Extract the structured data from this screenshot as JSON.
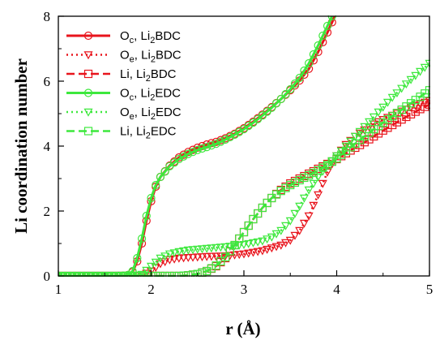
{
  "chart_data": {
    "type": "line",
    "title": "",
    "xlabel": "r (Å)",
    "ylabel": "Li coordination number",
    "xlim": [
      1,
      5
    ],
    "ylim": [
      0,
      8
    ],
    "x_ticks": [
      "1",
      "2",
      "3",
      "4",
      "5"
    ],
    "y_ticks": [
      "0",
      "2",
      "4",
      "6",
      "8"
    ],
    "grid": false,
    "legend_position": "top-left",
    "colors": {
      "red": "#e8141c",
      "green": "#3de83d"
    },
    "series": [
      {
        "name": "Oc, Li2BDC",
        "legend": {
          "a": "O",
          "a_sub": "c",
          "b": ",  Li",
          "b_sub": "2",
          "c": "BDC"
        },
        "color": "#e8141c",
        "line": "solid",
        "marker": "circle",
        "points": [
          [
            1.0,
            0
          ],
          [
            1.2,
            0
          ],
          [
            1.4,
            0
          ],
          [
            1.6,
            0
          ],
          [
            1.7,
            0.01
          ],
          [
            1.75,
            0.03
          ],
          [
            1.8,
            0.12
          ],
          [
            1.85,
            0.45
          ],
          [
            1.9,
            1.0
          ],
          [
            1.95,
            1.7
          ],
          [
            2.0,
            2.3
          ],
          [
            2.05,
            2.75
          ],
          [
            2.1,
            3.05
          ],
          [
            2.2,
            3.4
          ],
          [
            2.3,
            3.65
          ],
          [
            2.4,
            3.82
          ],
          [
            2.5,
            3.95
          ],
          [
            2.6,
            4.05
          ],
          [
            2.7,
            4.13
          ],
          [
            2.8,
            4.24
          ],
          [
            2.9,
            4.38
          ],
          [
            3.0,
            4.55
          ],
          [
            3.1,
            4.75
          ],
          [
            3.2,
            4.97
          ],
          [
            3.3,
            5.2
          ],
          [
            3.4,
            5.45
          ],
          [
            3.5,
            5.72
          ],
          [
            3.6,
            6.02
          ],
          [
            3.7,
            6.38
          ],
          [
            3.8,
            6.9
          ],
          [
            3.9,
            7.5
          ],
          [
            3.98,
            8.0
          ]
        ]
      },
      {
        "name": "Oe, Li2BDC",
        "legend": {
          "a": "O",
          "a_sub": "e",
          "b": ",  Li",
          "b_sub": "2",
          "c": "BDC"
        },
        "color": "#e8141c",
        "line": "dotted",
        "marker": "triangle-down",
        "points": [
          [
            1.0,
            0
          ],
          [
            1.4,
            0
          ],
          [
            1.8,
            0
          ],
          [
            1.9,
            0.02
          ],
          [
            2.0,
            0.15
          ],
          [
            2.1,
            0.38
          ],
          [
            2.2,
            0.5
          ],
          [
            2.3,
            0.55
          ],
          [
            2.4,
            0.57
          ],
          [
            2.6,
            0.6
          ],
          [
            2.8,
            0.62
          ],
          [
            3.0,
            0.68
          ],
          [
            3.2,
            0.78
          ],
          [
            3.4,
            0.95
          ],
          [
            3.5,
            1.1
          ],
          [
            3.6,
            1.4
          ],
          [
            3.7,
            1.85
          ],
          [
            3.8,
            2.5
          ],
          [
            3.9,
            3.2
          ],
          [
            4.0,
            3.7
          ],
          [
            4.1,
            4.05
          ],
          [
            4.2,
            4.3
          ],
          [
            4.3,
            4.5
          ],
          [
            4.4,
            4.68
          ],
          [
            4.5,
            4.82
          ],
          [
            4.6,
            4.95
          ],
          [
            4.7,
            5.08
          ],
          [
            4.8,
            5.2
          ],
          [
            4.9,
            5.3
          ],
          [
            5.0,
            5.4
          ]
        ]
      },
      {
        "name": "Li, Li2BDC",
        "legend": {
          "a": "Li",
          "a_sub": "",
          "b": ",  Li",
          "b_sub": "2",
          "c": "BDC"
        },
        "color": "#e8141c",
        "line": "dashed",
        "marker": "square",
        "points": [
          [
            1.0,
            0
          ],
          [
            1.5,
            0
          ],
          [
            2.0,
            0
          ],
          [
            2.3,
            0
          ],
          [
            2.4,
            0.02
          ],
          [
            2.5,
            0.06
          ],
          [
            2.6,
            0.15
          ],
          [
            2.7,
            0.3
          ],
          [
            2.8,
            0.55
          ],
          [
            2.9,
            0.95
          ],
          [
            3.0,
            1.35
          ],
          [
            3.1,
            1.75
          ],
          [
            3.2,
            2.1
          ],
          [
            3.3,
            2.4
          ],
          [
            3.4,
            2.65
          ],
          [
            3.5,
            2.85
          ],
          [
            3.6,
            3.0
          ],
          [
            3.7,
            3.15
          ],
          [
            3.8,
            3.3
          ],
          [
            3.9,
            3.45
          ],
          [
            4.0,
            3.6
          ],
          [
            4.1,
            3.78
          ],
          [
            4.2,
            3.95
          ],
          [
            4.3,
            4.12
          ],
          [
            4.4,
            4.3
          ],
          [
            4.5,
            4.48
          ],
          [
            4.6,
            4.65
          ],
          [
            4.7,
            4.82
          ],
          [
            4.8,
            4.98
          ],
          [
            4.9,
            5.14
          ],
          [
            5.0,
            5.28
          ]
        ]
      },
      {
        "name": "Oc, Li2EDC",
        "legend": {
          "a": "O",
          "a_sub": "c",
          "b": ",  Li",
          "b_sub": "2",
          "c": "EDC"
        },
        "color": "#3de83d",
        "line": "solid",
        "marker": "circle",
        "points": [
          [
            1.0,
            0
          ],
          [
            1.2,
            0
          ],
          [
            1.4,
            0
          ],
          [
            1.6,
            0
          ],
          [
            1.7,
            0.01
          ],
          [
            1.75,
            0.03
          ],
          [
            1.8,
            0.15
          ],
          [
            1.85,
            0.55
          ],
          [
            1.9,
            1.15
          ],
          [
            1.95,
            1.85
          ],
          [
            2.0,
            2.4
          ],
          [
            2.05,
            2.8
          ],
          [
            2.1,
            3.05
          ],
          [
            2.2,
            3.38
          ],
          [
            2.3,
            3.6
          ],
          [
            2.4,
            3.76
          ],
          [
            2.5,
            3.88
          ],
          [
            2.6,
            3.97
          ],
          [
            2.7,
            4.07
          ],
          [
            2.8,
            4.2
          ],
          [
            2.9,
            4.35
          ],
          [
            3.0,
            4.52
          ],
          [
            3.1,
            4.72
          ],
          [
            3.2,
            4.94
          ],
          [
            3.3,
            5.18
          ],
          [
            3.4,
            5.45
          ],
          [
            3.5,
            5.75
          ],
          [
            3.6,
            6.1
          ],
          [
            3.7,
            6.55
          ],
          [
            3.8,
            7.1
          ],
          [
            3.9,
            7.7
          ],
          [
            3.95,
            8.0
          ]
        ]
      },
      {
        "name": "Oe, Li2EDC",
        "legend": {
          "a": "O",
          "a_sub": "e",
          "b": ",  Li",
          "b_sub": "2",
          "c": "EDC"
        },
        "color": "#3de83d",
        "line": "dotted",
        "marker": "triangle-down",
        "points": [
          [
            1.0,
            0
          ],
          [
            1.5,
            0
          ],
          [
            1.8,
            0
          ],
          [
            1.9,
            0.05
          ],
          [
            2.0,
            0.3
          ],
          [
            2.1,
            0.55
          ],
          [
            2.2,
            0.68
          ],
          [
            2.3,
            0.75
          ],
          [
            2.4,
            0.8
          ],
          [
            2.6,
            0.85
          ],
          [
            2.8,
            0.9
          ],
          [
            3.0,
            0.97
          ],
          [
            3.2,
            1.08
          ],
          [
            3.3,
            1.2
          ],
          [
            3.4,
            1.4
          ],
          [
            3.5,
            1.7
          ],
          [
            3.6,
            2.15
          ],
          [
            3.7,
            2.65
          ],
          [
            3.8,
            3.05
          ],
          [
            3.9,
            3.4
          ],
          [
            4.0,
            3.7
          ],
          [
            4.1,
            4.0
          ],
          [
            4.2,
            4.3
          ],
          [
            4.3,
            4.6
          ],
          [
            4.4,
            4.9
          ],
          [
            4.5,
            5.2
          ],
          [
            4.6,
            5.5
          ],
          [
            4.7,
            5.78
          ],
          [
            4.8,
            6.05
          ],
          [
            4.9,
            6.3
          ],
          [
            5.0,
            6.55
          ]
        ]
      },
      {
        "name": "Li, Li2EDC",
        "legend": {
          "a": "Li",
          "a_sub": "",
          "b": ",  Li",
          "b_sub": "2",
          "c": "EDC"
        },
        "color": "#3de83d",
        "line": "dashed",
        "marker": "square",
        "points": [
          [
            1.0,
            0
          ],
          [
            1.5,
            0
          ],
          [
            2.0,
            0
          ],
          [
            2.3,
            0
          ],
          [
            2.4,
            0.02
          ],
          [
            2.5,
            0.06
          ],
          [
            2.6,
            0.15
          ],
          [
            2.7,
            0.32
          ],
          [
            2.8,
            0.58
          ],
          [
            2.9,
            0.95
          ],
          [
            3.0,
            1.35
          ],
          [
            3.1,
            1.75
          ],
          [
            3.2,
            2.1
          ],
          [
            3.3,
            2.4
          ],
          [
            3.4,
            2.62
          ],
          [
            3.5,
            2.8
          ],
          [
            3.6,
            2.95
          ],
          [
            3.7,
            3.1
          ],
          [
            3.8,
            3.25
          ],
          [
            3.9,
            3.42
          ],
          [
            4.0,
            3.62
          ],
          [
            4.1,
            3.85
          ],
          [
            4.2,
            4.08
          ],
          [
            4.3,
            4.3
          ],
          [
            4.4,
            4.52
          ],
          [
            4.5,
            4.72
          ],
          [
            4.6,
            4.92
          ],
          [
            4.7,
            5.12
          ],
          [
            4.8,
            5.32
          ],
          [
            4.9,
            5.52
          ],
          [
            5.0,
            5.72
          ]
        ]
      }
    ]
  }
}
